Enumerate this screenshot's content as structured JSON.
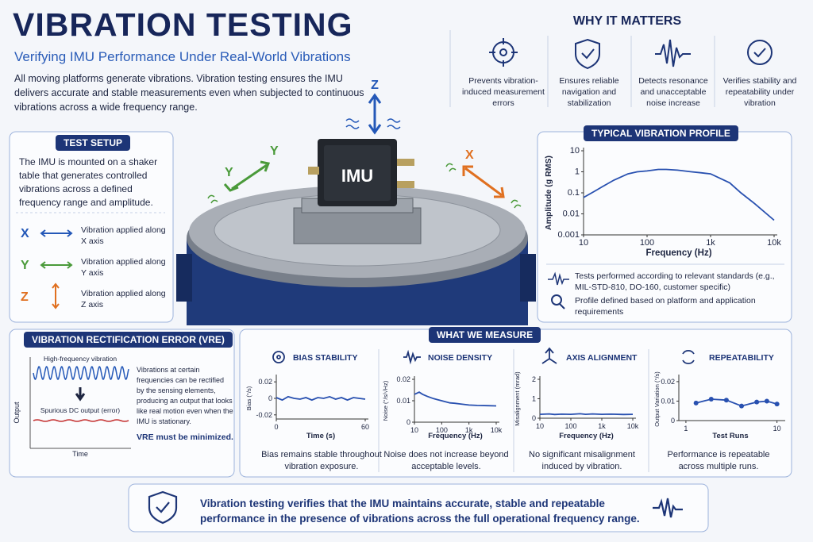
{
  "header": {
    "title": "VIBRATION TESTING",
    "subtitle": "Verifying IMU Performance Under Real-World Vibrations",
    "intro": "All moving platforms generate vibrations. Vibration testing ensures the IMU delivers accurate and stable measurements even when subjected to continuous vibrations across a wide frequency range."
  },
  "why_it_matters": {
    "title": "WHY IT MATTERS",
    "items": [
      "Prevents vibration-induced measurement errors",
      "Ensures reliable navigation and stabilization",
      "Detects resonance and unacceptable noise increase",
      "Verifies stability and repeatability under vibration"
    ]
  },
  "test_setup": {
    "title": "TEST SETUP",
    "description": "The IMU is mounted on a shaker table that generates controlled vibrations across a defined frequency range and amplitude.",
    "axes": [
      {
        "letter": "X",
        "text": "Vibration applied along X axis"
      },
      {
        "letter": "Y",
        "text": "Vibration applied along Y axis"
      },
      {
        "letter": "Z",
        "text": "Vibration applied along Z axis"
      }
    ]
  },
  "illustration": {
    "device": "IMU",
    "x": "X",
    "y": "Y",
    "z": "Z"
  },
  "profile_notes": [
    "Tests performed according to relevant standards (e.g., MIL-STD-810, DO-160, customer specific)",
    "Profile defined based on platform and application requirements"
  ],
  "vre": {
    "title": "VIBRATION RECTIFICATION ERROR (VRE)",
    "wave_label": "High-frequency vibration",
    "dc_label": "Spurious DC output (error)",
    "ylabel": "Output",
    "xlabel": "Time",
    "description": "Vibrations at certain frequencies can be rectified by the sensing elements, producing an output that looks like real motion even when the IMU is stationary.",
    "emphasis": "VRE must be minimized."
  },
  "measure_title": "WHAT WE MEASURE",
  "footer": "Vibration testing verifies that the IMU maintains accurate, stable and repeatable performance in the presence of vibrations across the full operational frequency range.",
  "chart_data": [
    {
      "type": "line",
      "title": "TYPICAL VIBRATION PROFILE",
      "xlabel": "Frequency (Hz)",
      "ylabel": "Amplitude (g RMS)",
      "x": [
        10,
        15,
        20,
        30,
        50,
        70,
        100,
        150,
        200,
        300,
        500,
        700,
        1000,
        2000,
        3000,
        5000,
        10000
      ],
      "values": [
        0.06,
        0.12,
        0.2,
        0.4,
        0.8,
        1.0,
        1.1,
        1.3,
        1.3,
        1.2,
        1.0,
        0.9,
        0.8,
        0.3,
        0.1,
        0.03,
        0.005
      ],
      "xlim": [
        10,
        10000
      ],
      "ylim": [
        0.001,
        10
      ],
      "xscale": "log",
      "yscale": "log",
      "xticks": [
        10,
        100,
        {
          "value": 1000,
          "label": "1k"
        },
        {
          "value": 10000,
          "label": "10k"
        }
      ],
      "yticks": [
        10,
        1,
        0.1,
        0.01,
        0.001
      ],
      "color": "#2850b0"
    },
    {
      "type": "line",
      "title": "BIAS STABILITY",
      "xlabel": "Time (s)",
      "ylabel": "Bias (°/s)",
      "x": [
        0,
        4,
        8,
        12,
        16,
        20,
        24,
        28,
        32,
        36,
        40,
        44,
        48,
        52,
        56,
        60
      ],
      "values": [
        0.001,
        -0.002,
        0.002,
        0,
        -0.001,
        0.001,
        -0.002,
        0.001,
        0,
        0.002,
        -0.001,
        0.001,
        -0.002,
        0.001,
        0,
        -0.001
      ],
      "xlim": [
        0,
        60
      ],
      "ylim": [
        -0.025,
        0.025
      ],
      "xticks": [
        0,
        60
      ],
      "yticks": [
        0.02,
        0,
        -0.02
      ],
      "color": "#2850b0",
      "caption": "Bias remains stable throughout vibration exposure."
    },
    {
      "type": "line",
      "title": "NOISE DENSITY",
      "xlabel": "Frequency (Hz)",
      "ylabel": "Noise (°/s/√Hz)",
      "x": [
        10,
        15,
        20,
        30,
        50,
        70,
        100,
        200,
        300,
        500,
        1000,
        2000,
        5000,
        10000
      ],
      "values": [
        0.013,
        0.014,
        0.013,
        0.012,
        0.011,
        0.0105,
        0.01,
        0.009,
        0.0088,
        0.0085,
        0.008,
        0.0078,
        0.0077,
        0.0076
      ],
      "xlim": [
        10,
        10000
      ],
      "ylim": [
        0,
        0.02
      ],
      "xscale": "log",
      "xticks": [
        10,
        100,
        {
          "value": 1000,
          "label": "1k"
        },
        {
          "value": 10000,
          "label": "10k"
        }
      ],
      "yticks": [
        0.02,
        0.01,
        0
      ],
      "color": "#2850b0",
      "caption": "Noise does not increase beyond acceptable levels."
    },
    {
      "type": "line",
      "title": "AXIS ALIGNMENT",
      "xlabel": "Frequency (Hz)",
      "ylabel": "Misalignment (mrad)",
      "x": [
        10,
        20,
        30,
        50,
        100,
        200,
        300,
        500,
        1000,
        2000,
        5000,
        10000
      ],
      "values": [
        0.2,
        0.22,
        0.19,
        0.21,
        0.2,
        0.23,
        0.2,
        0.22,
        0.2,
        0.21,
        0.19,
        0.2
      ],
      "xlim": [
        10,
        10000
      ],
      "ylim": [
        0,
        2
      ],
      "xscale": "log",
      "xticks": [
        10,
        100,
        {
          "value": 1000,
          "label": "1k"
        },
        {
          "value": 10000,
          "label": "10k"
        }
      ],
      "yticks": [
        2,
        1,
        0
      ],
      "color": "#2850b0",
      "caption": "No significant misalignment induced by vibration."
    },
    {
      "type": "line",
      "title": "REPEATABILITY",
      "xlabel": "Test Runs",
      "ylabel": "Output Variation (°/s)",
      "x": [
        2,
        3.5,
        5,
        6.5,
        8,
        9,
        10
      ],
      "values": [
        0.009,
        0.011,
        0.0105,
        0.0075,
        0.0095,
        0.01,
        0.0085
      ],
      "xlim": [
        0.3,
        10.5
      ],
      "ylim": [
        0,
        0.022
      ],
      "xticks": [
        1,
        10
      ],
      "yticks": [
        0.02,
        0.01,
        0
      ],
      "markers": true,
      "color": "#2850b0",
      "caption": "Performance is repeatable across multiple runs."
    }
  ]
}
